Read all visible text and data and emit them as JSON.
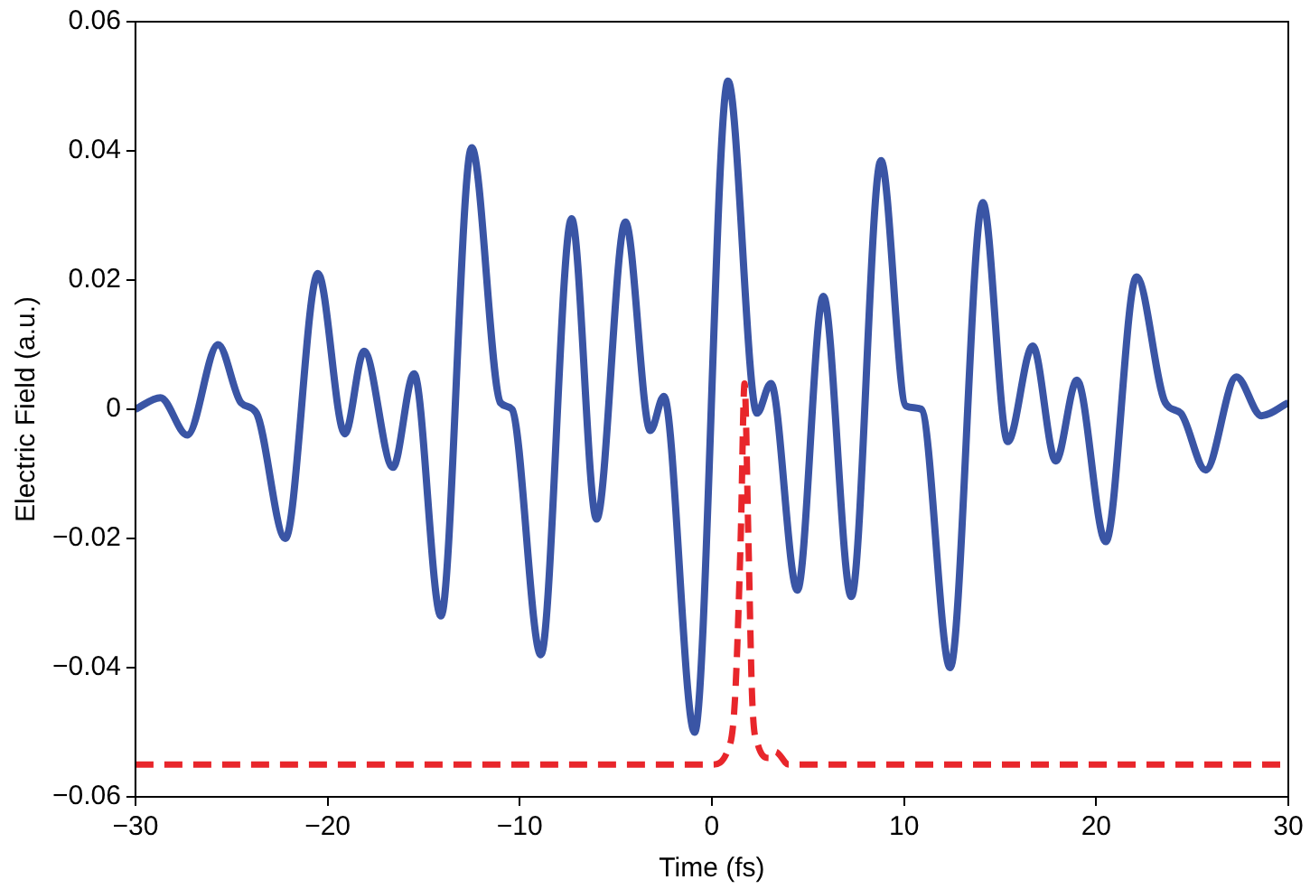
{
  "chart_data": {
    "type": "line",
    "xlabel": "Time (fs)",
    "ylabel": "Electric Field (a.u.)",
    "xlim": [
      -30,
      30
    ],
    "xticks": [
      {
        "value": -30,
        "label": "−30"
      },
      {
        "value": -20,
        "label": "−20"
      },
      {
        "value": -10,
        "label": "−10"
      },
      0,
      10,
      20,
      30
    ],
    "ylim": [
      -0.06,
      0.06
    ],
    "yticks": [
      {
        "value": -0.06,
        "label": "−0.06"
      },
      {
        "value": -0.04,
        "label": "−0.04"
      },
      {
        "value": -0.02,
        "label": "−0.02"
      },
      0,
      0.02,
      0.04,
      0.06
    ],
    "grid": false,
    "legend": false,
    "marker": "none",
    "series": [
      {
        "color": "#3a55a5",
        "line_style": "solid",
        "x": [
          -30,
          -28.7,
          -27.3,
          -25.7,
          -24.5,
          -23.7,
          -22.2,
          -20.5,
          -19.1,
          -18.1,
          -16.6,
          -15.5,
          -14.1,
          -12.5,
          -11.0,
          -10.4,
          -8.9,
          -7.3,
          -6.0,
          -4.5,
          -3.2,
          -2.5,
          -0.9,
          0.84,
          2.35,
          3.07,
          4.45,
          5.8,
          7.26,
          8.8,
          10.1,
          10.9,
          12.4,
          14.1,
          15.4,
          16.7,
          17.9,
          19.0,
          20.5,
          22.1,
          23.6,
          24.4,
          25.7,
          27.3,
          28.6,
          30
        ],
        "values": [
          0,
          0.0018,
          -0.004,
          0.01,
          0.001,
          -0.0006,
          -0.02,
          0.021,
          -0.0038,
          0.009,
          -0.009,
          0.0055,
          -0.032,
          0.0405,
          0.001,
          0,
          -0.038,
          0.0295,
          -0.017,
          0.029,
          -0.0033,
          0.002,
          -0.05,
          0.0508,
          -0.0006,
          0.004,
          -0.028,
          0.0175,
          -0.029,
          0.0385,
          0.0005,
          0,
          -0.04,
          0.032,
          -0.005,
          0.0098,
          -0.008,
          0.0045,
          -0.0205,
          0.0205,
          0.001,
          -0.0006,
          -0.0094,
          0.005,
          -0.001,
          0.001
        ]
      },
      {
        "color": "#e8262b",
        "line_style": "dashed",
        "x": [
          -30,
          0,
          0.8,
          1.2,
          1.5,
          1.7,
          1.9,
          2.1,
          2.4,
          3,
          3.3,
          4,
          30
        ],
        "values": [
          -0.055,
          -0.055,
          -0.053,
          -0.045,
          -0.02,
          0.004,
          -0.02,
          -0.045,
          -0.052,
          -0.054,
          -0.053,
          -0.055,
          -0.055
        ]
      }
    ]
  }
}
